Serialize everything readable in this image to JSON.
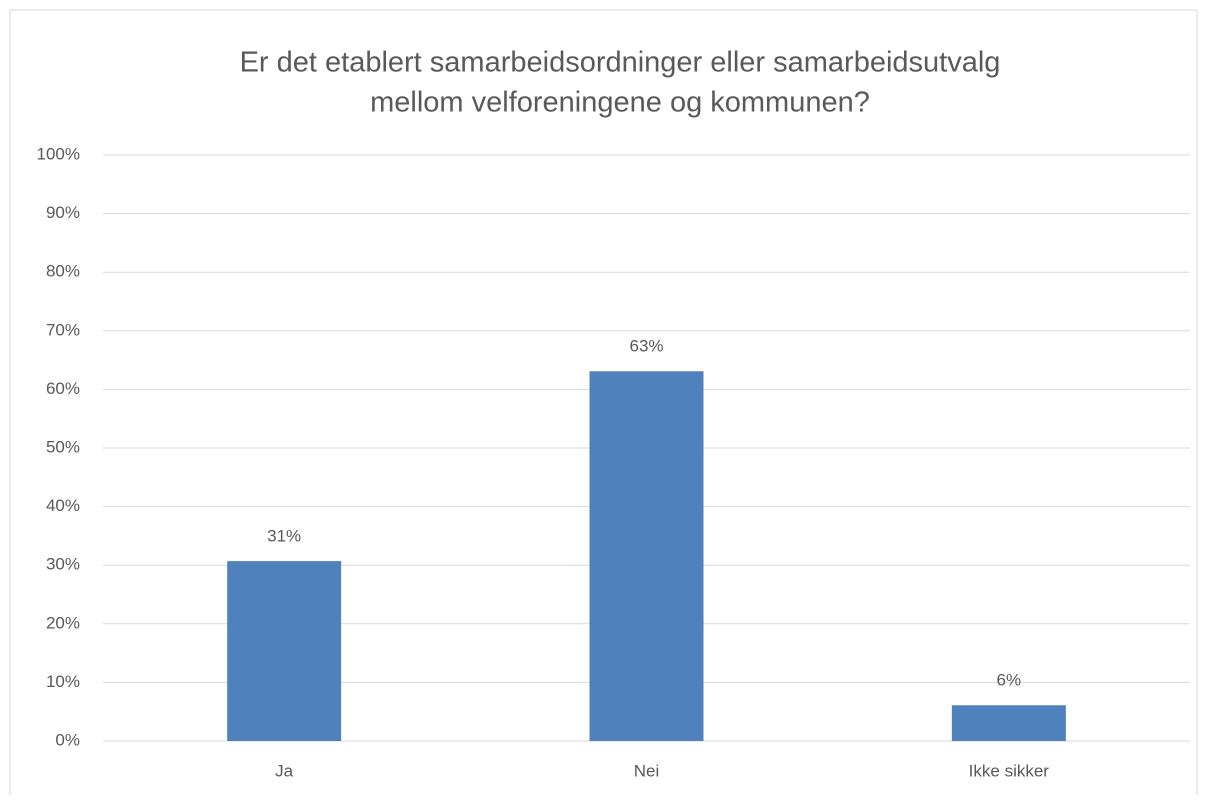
{
  "chart_data": {
    "type": "bar",
    "title": [
      "Er det etablert samarbeidsordninger eller samarbeidsutvalg",
      "mellom velforeningene og kommunen?"
    ],
    "categories": [
      "Ja",
      "Nei",
      "Ikke sikker"
    ],
    "values": [
      30.7,
      63.1,
      6.1
    ],
    "value_labels": [
      "31%",
      "63%",
      "6%"
    ],
    "color": "#4f81bd",
    "ylim": [
      0,
      100
    ],
    "yticks": [
      {
        "value": 0,
        "label": "0%"
      },
      {
        "value": 10,
        "label": "10%"
      },
      {
        "value": 20,
        "label": "20%"
      },
      {
        "value": 30,
        "label": "30%"
      },
      {
        "value": 40,
        "label": "40%"
      },
      {
        "value": 50,
        "label": "50%"
      },
      {
        "value": 60,
        "label": "60%"
      },
      {
        "value": 70,
        "label": "70%"
      },
      {
        "value": 80,
        "label": "80%"
      },
      {
        "value": 90,
        "label": "90%"
      },
      {
        "value": 100,
        "label": "100%"
      }
    ],
    "grid": true
  }
}
